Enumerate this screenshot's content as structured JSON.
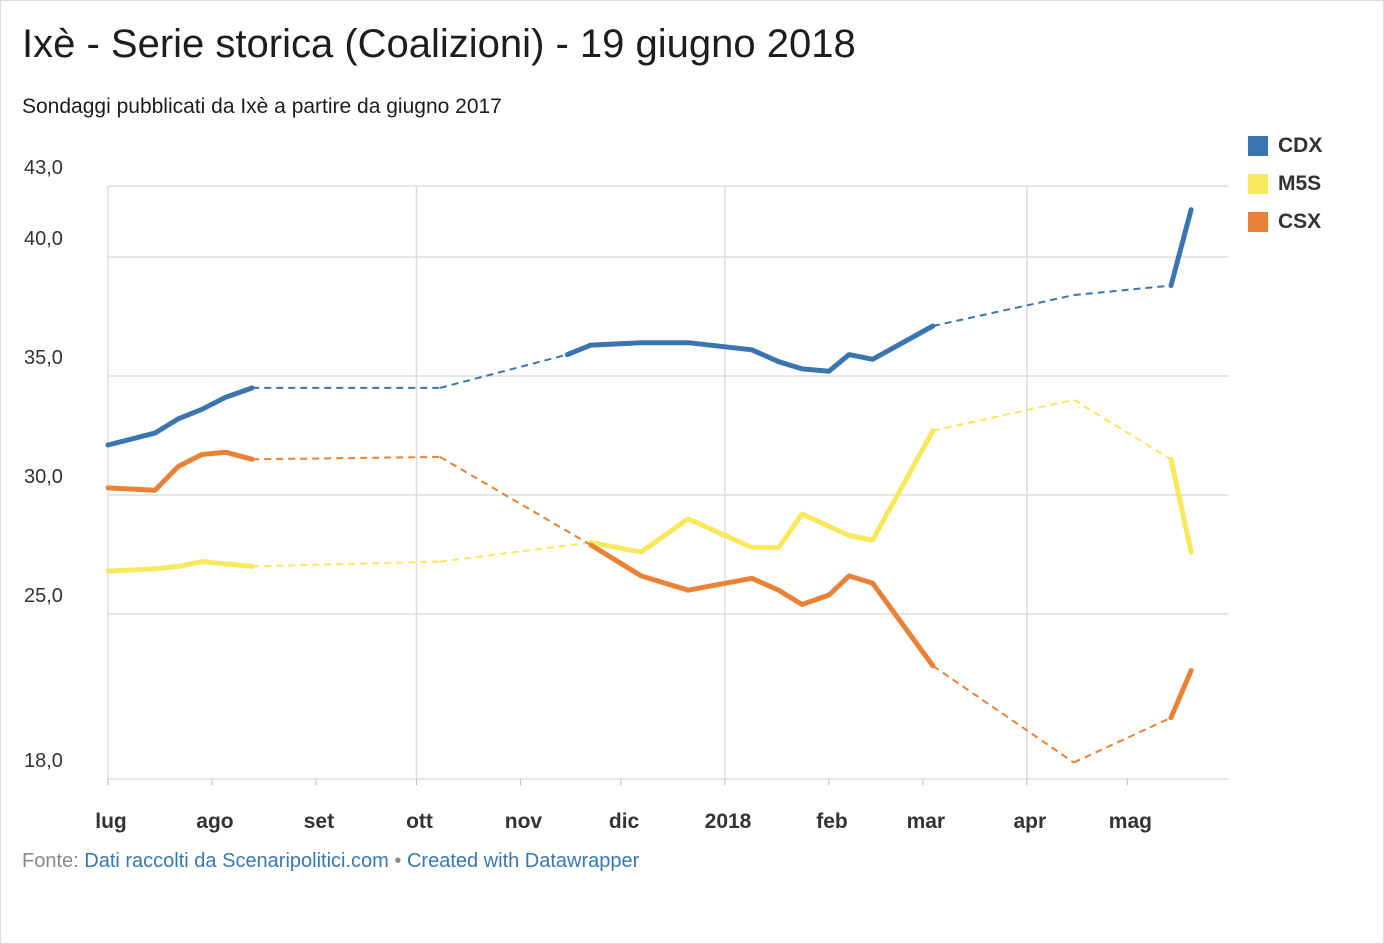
{
  "title": "Ixè - Serie storica (Coalizioni) - 19 giugno 2018",
  "subtitle": "Sondaggi pubblicati da Ixè a partire da giugno 2017",
  "footer": {
    "prefix": "Fonte:",
    "source": "Dati raccolti da Scenaripolitici.com",
    "separator": "•",
    "credit": "Created with Datawrapper"
  },
  "colors": {
    "CDX": "#3a75b0",
    "M5S": "#f9e85c",
    "CSX": "#ea8236",
    "grid": "#dddddd",
    "link": "#3878b4"
  },
  "chart_data": {
    "type": "line",
    "title": "Ixè - Serie storica (Coalizioni) - 19 giugno 2018",
    "subtitle": "Sondaggi pubblicati da Ixè a partire da giugno 2017",
    "xlabel": "",
    "ylabel": "",
    "x_range": [
      "2017-07-01",
      "2018-05-31"
    ],
    "ylim": [
      18,
      43
    ],
    "y_scale": "linear, compressed below 25",
    "yticks": [
      {
        "value": 43,
        "label": "43,0"
      },
      {
        "value": 40,
        "label": "40,0"
      },
      {
        "value": 35,
        "label": "35,0"
      },
      {
        "value": 30,
        "label": "30,0"
      },
      {
        "value": 25,
        "label": "25,0"
      },
      {
        "value": 18,
        "label": "18,0"
      }
    ],
    "xticks": [
      {
        "date": "2017-07-01",
        "label": "lug"
      },
      {
        "date": "2017-08-01",
        "label": "ago"
      },
      {
        "date": "2017-09-01",
        "label": "set"
      },
      {
        "date": "2017-10-01",
        "label": "ott"
      },
      {
        "date": "2017-11-01",
        "label": "nov"
      },
      {
        "date": "2017-12-01",
        "label": "dic"
      },
      {
        "date": "2018-01-01",
        "label": "2018"
      },
      {
        "date": "2018-02-01",
        "label": "feb"
      },
      {
        "date": "2018-03-01",
        "label": "mar"
      },
      {
        "date": "2018-04-01",
        "label": "apr"
      },
      {
        "date": "2018-05-01",
        "label": "mag"
      }
    ],
    "vertical_gridlines": [
      "2017-07-01",
      "2017-10-01",
      "2018-01-01",
      "2018-04-01"
    ],
    "grid": true,
    "legend_position": "top-right",
    "gaps_drawn_dashed": true,
    "series": [
      {
        "name": "CDX",
        "color": "#3a75b0",
        "points": [
          [
            "2017-07-01",
            32.1
          ],
          [
            "2017-07-15",
            32.6
          ],
          [
            "2017-07-22",
            33.2
          ],
          [
            "2017-07-29",
            33.6
          ],
          [
            "2017-08-05",
            34.1
          ],
          [
            "2017-08-13",
            34.5
          ],
          [
            "2017-10-08",
            34.5
          ],
          [
            "2017-11-15",
            35.9
          ],
          [
            "2017-11-22",
            36.3
          ],
          [
            "2017-12-07",
            36.4
          ],
          [
            "2017-12-21",
            36.4
          ],
          [
            "2018-01-09",
            36.1
          ],
          [
            "2018-01-17",
            35.6
          ],
          [
            "2018-01-24",
            35.3
          ],
          [
            "2018-02-01",
            35.2
          ],
          [
            "2018-02-07",
            35.9
          ],
          [
            "2018-02-14",
            35.7
          ],
          [
            "2018-03-04",
            37.1
          ],
          [
            "2018-04-15",
            38.4
          ],
          [
            "2018-05-14",
            38.8
          ],
          [
            "2018-05-20",
            42.0
          ]
        ]
      },
      {
        "name": "M5S",
        "color": "#f9e85c",
        "points": [
          [
            "2017-07-01",
            26.8
          ],
          [
            "2017-07-15",
            26.9
          ],
          [
            "2017-07-22",
            27.0
          ],
          [
            "2017-07-29",
            27.2
          ],
          [
            "2017-08-13",
            27.0
          ],
          [
            "2017-10-08",
            27.2
          ],
          [
            "2017-11-22",
            28.0
          ],
          [
            "2017-12-07",
            27.6
          ],
          [
            "2017-12-21",
            29.0
          ],
          [
            "2018-01-09",
            27.8
          ],
          [
            "2018-01-17",
            27.8
          ],
          [
            "2018-01-24",
            29.2
          ],
          [
            "2018-02-07",
            28.3
          ],
          [
            "2018-02-14",
            28.1
          ],
          [
            "2018-03-04",
            32.7
          ],
          [
            "2018-04-15",
            34.0
          ],
          [
            "2018-05-14",
            31.5
          ],
          [
            "2018-05-20",
            27.6
          ]
        ]
      },
      {
        "name": "CSX",
        "color": "#ea8236",
        "points": [
          [
            "2017-07-01",
            30.3
          ],
          [
            "2017-07-15",
            30.2
          ],
          [
            "2017-07-22",
            31.2
          ],
          [
            "2017-07-29",
            31.7
          ],
          [
            "2017-08-05",
            31.8
          ],
          [
            "2017-08-13",
            31.5
          ],
          [
            "2017-10-08",
            31.6
          ],
          [
            "2017-11-22",
            27.9
          ],
          [
            "2017-12-07",
            26.6
          ],
          [
            "2017-12-21",
            26.0
          ],
          [
            "2018-01-09",
            26.5
          ],
          [
            "2018-01-17",
            26.0
          ],
          [
            "2018-01-24",
            25.4
          ],
          [
            "2018-02-01",
            25.8
          ],
          [
            "2018-02-07",
            26.6
          ],
          [
            "2018-02-14",
            26.3
          ],
          [
            "2018-03-04",
            22.8
          ],
          [
            "2018-04-15",
            18.7
          ],
          [
            "2018-05-14",
            20.6
          ],
          [
            "2018-05-20",
            22.6
          ]
        ]
      }
    ]
  }
}
